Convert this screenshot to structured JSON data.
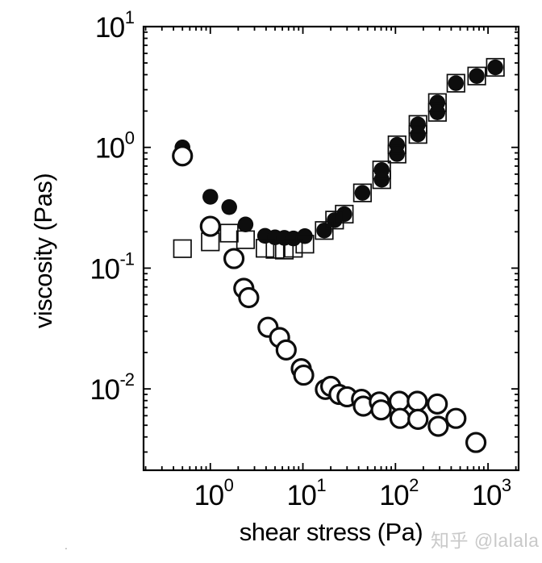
{
  "watermark": {
    "text": "知乎 @lalala",
    "color": "#c9c9c9"
  },
  "artifact": {
    "dot": "."
  },
  "chart_data": {
    "type": "scatter",
    "title": "",
    "xlabel": "shear stress (Pa)",
    "ylabel": "viscosity (Pas)",
    "x_scale": "log",
    "y_scale": "log",
    "grid": false,
    "legend": null,
    "xlim": [
      0.19,
      2140
    ],
    "ylim": [
      0.00212,
      10
    ],
    "x_ticks": [
      {
        "value": 1,
        "base": "10",
        "exp": "0"
      },
      {
        "value": 10,
        "base": "10",
        "exp": "1"
      },
      {
        "value": 100,
        "base": "10",
        "exp": "2"
      },
      {
        "value": 1000,
        "base": "10",
        "exp": "3"
      }
    ],
    "y_ticks": [
      {
        "value": 10,
        "base": "10",
        "exp": "1"
      },
      {
        "value": 1,
        "base": "10",
        "exp": "0"
      },
      {
        "value": 0.1,
        "base": "10",
        "exp": "-1"
      },
      {
        "value": 0.01,
        "base": "10",
        "exp": "-2"
      }
    ],
    "marker_color": "#000000",
    "series": [
      {
        "name": "filled-circles",
        "marker": "filled-circle",
        "diameter": 19.5,
        "stroke_width": 0,
        "color": "#0d0d0d",
        "points": [
          [
            0.5,
            1.0
          ],
          [
            1.0,
            0.39
          ],
          [
            1.6,
            0.32
          ],
          [
            2.4,
            0.23
          ],
          [
            3.9,
            0.185
          ],
          [
            5.0,
            0.18
          ],
          [
            6.3,
            0.178
          ],
          [
            7.9,
            0.176
          ],
          [
            10.5,
            0.184
          ],
          [
            17,
            0.205
          ],
          [
            22,
            0.25
          ],
          [
            28,
            0.28
          ],
          [
            44,
            0.42
          ],
          [
            71,
            0.65
          ],
          [
            71,
            0.54
          ],
          [
            104,
            1.05
          ],
          [
            104,
            0.88
          ],
          [
            175,
            1.55
          ],
          [
            175,
            1.28
          ],
          [
            284,
            2.35
          ],
          [
            284,
            1.95
          ],
          [
            450,
            3.4
          ],
          [
            755,
            3.9
          ],
          [
            1200,
            4.6
          ]
        ]
      },
      {
        "name": "open-squares",
        "marker": "open-square",
        "size": 21.5,
        "stroke_width": 1.7,
        "color": "#0d0d0d",
        "points": [
          [
            0.5,
            0.145
          ],
          [
            1.0,
            0.165
          ],
          [
            1.6,
            0.195
          ],
          [
            2.4,
            0.172
          ],
          [
            3.9,
            0.146
          ],
          [
            5.0,
            0.143
          ],
          [
            6.3,
            0.141
          ],
          [
            7.9,
            0.146
          ],
          [
            10.5,
            0.158
          ],
          [
            17,
            0.205
          ],
          [
            22,
            0.25
          ],
          [
            28,
            0.28
          ],
          [
            44,
            0.42
          ],
          [
            71,
            0.65
          ],
          [
            71,
            0.54
          ],
          [
            104,
            1.05
          ],
          [
            104,
            0.88
          ],
          [
            175,
            1.55
          ],
          [
            175,
            1.28
          ],
          [
            284,
            2.35
          ],
          [
            284,
            1.95
          ],
          [
            450,
            3.4
          ],
          [
            755,
            3.9
          ],
          [
            1200,
            4.6
          ]
        ]
      },
      {
        "name": "open-circles",
        "marker": "open-circle",
        "diameter": 23,
        "stroke_width": 3.2,
        "color": "#0d0d0d",
        "points": [
          [
            0.5,
            0.85
          ],
          [
            1.0,
            0.222
          ],
          [
            1.8,
            0.12
          ],
          [
            2.3,
            0.068
          ],
          [
            2.6,
            0.057
          ],
          [
            4.2,
            0.0324
          ],
          [
            5.6,
            0.0266
          ],
          [
            6.6,
            0.021
          ],
          [
            9.6,
            0.0147
          ],
          [
            10.2,
            0.013
          ],
          [
            17.5,
            0.0099
          ],
          [
            20,
            0.0105
          ],
          [
            24.6,
            0.009
          ],
          [
            30,
            0.0086
          ],
          [
            43,
            0.0082
          ],
          [
            45,
            0.0072
          ],
          [
            67,
            0.0078
          ],
          [
            70,
            0.0067
          ],
          [
            110,
            0.0079
          ],
          [
            112,
            0.0057
          ],
          [
            172,
            0.0079
          ],
          [
            175,
            0.0056
          ],
          [
            283,
            0.0075
          ],
          [
            290,
            0.0049
          ],
          [
            450,
            0.0057
          ],
          [
            740,
            0.0036
          ]
        ]
      }
    ]
  }
}
